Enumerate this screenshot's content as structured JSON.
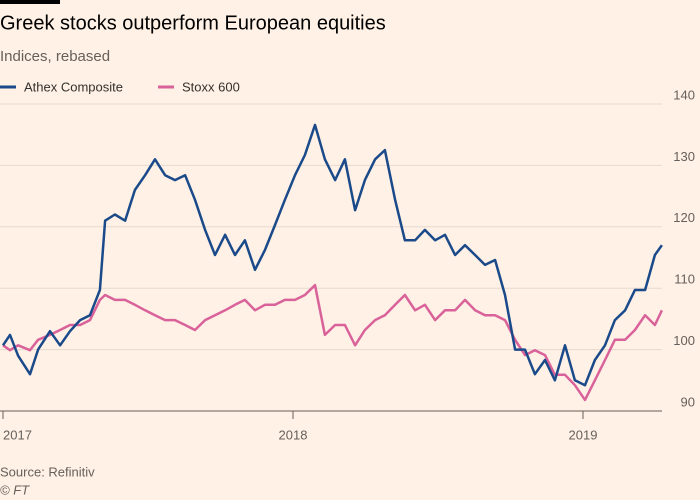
{
  "chart_data": {
    "type": "line",
    "title": "Greek stocks outperform European equities",
    "subtitle": "Indices, rebased",
    "source": "Source: Refinitiv",
    "credit": "© FT",
    "x": [
      2017.0,
      2017.024,
      2017.052,
      2017.093,
      2017.121,
      2017.162,
      2017.197,
      2017.231,
      2017.266,
      2017.3,
      2017.334,
      2017.352,
      2017.386,
      2017.421,
      2017.455,
      2017.49,
      2017.524,
      2017.559,
      2017.593,
      2017.628,
      2017.662,
      2017.697,
      2017.731,
      2017.766,
      2017.8,
      2017.834,
      2017.869,
      2017.903,
      2017.938,
      2017.972,
      2018.007,
      2018.041,
      2018.076,
      2018.11,
      2018.145,
      2018.179,
      2018.214,
      2018.248,
      2018.283,
      2018.317,
      2018.352,
      2018.386,
      2018.421,
      2018.455,
      2018.49,
      2018.524,
      2018.559,
      2018.593,
      2018.628,
      2018.662,
      2018.697,
      2018.731,
      2018.766,
      2018.8,
      2018.834,
      2018.869,
      2018.903,
      2018.938,
      2018.972,
      2019.007,
      2019.041,
      2019.076,
      2019.11,
      2019.145,
      2019.179,
      2019.214,
      2019.248,
      2019.272
    ],
    "series": [
      {
        "name": "Athex Composite",
        "color": "#1a4a8a",
        "values": [
          100.7,
          102.4,
          99,
          96,
          100,
          103,
          100.7,
          103,
          104.8,
          105.6,
          109.7,
          121,
          122,
          121,
          126,
          128.4,
          131,
          128.4,
          127.6,
          128.4,
          124.4,
          119.5,
          115.4,
          118.7,
          115.4,
          117.8,
          113,
          116.2,
          120.3,
          124.4,
          128.4,
          131.7,
          136.6,
          131,
          127.6,
          131,
          122.7,
          127.6,
          131,
          132.5,
          124.4,
          117.8,
          117.8,
          119.5,
          117.8,
          118.7,
          115.4,
          117,
          115.4,
          113.8,
          114.6,
          108.9,
          100,
          100,
          96,
          98.3,
          95,
          100.7,
          95,
          94.2,
          98.3,
          100.7,
          104.8,
          106.4,
          109.7,
          109.7,
          115.4,
          117
        ]
      },
      {
        "name": "Stoxx 600",
        "color": "#d9629a",
        "values": [
          100.7,
          99.9,
          100.7,
          99.9,
          101.6,
          102.4,
          103.2,
          104,
          104,
          104.8,
          108.1,
          108.9,
          108.1,
          108.1,
          107.3,
          106.4,
          105.6,
          104.8,
          104.8,
          104,
          103.2,
          104.8,
          105.6,
          106.4,
          107.3,
          108.1,
          106.4,
          107.3,
          107.3,
          108.1,
          108.1,
          108.9,
          110.5,
          102.4,
          104,
          104,
          100.7,
          103.2,
          104.8,
          105.6,
          107.3,
          108.9,
          106.4,
          107.3,
          104.8,
          106.4,
          106.4,
          108.1,
          106.4,
          105.6,
          105.6,
          104.8,
          101.6,
          99.1,
          99.9,
          99.1,
          95.9,
          95.9,
          94.2,
          91.8,
          95,
          98.3,
          101.6,
          101.6,
          103.2,
          105.6,
          104,
          106.4
        ]
      }
    ],
    "xlim": [
      2017.0,
      2019.3
    ],
    "xticks": [
      2017,
      2018,
      2019
    ],
    "ylim": [
      90,
      140
    ],
    "yticks": [
      90,
      100,
      110,
      120,
      130,
      140
    ],
    "grid": true
  }
}
